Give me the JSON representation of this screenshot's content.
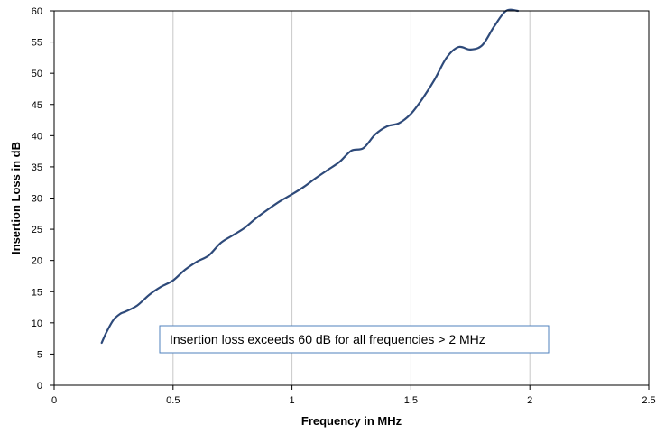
{
  "chart_data": {
    "type": "line",
    "title": "",
    "xlabel": "Frequency in MHz",
    "ylabel": "Insertion Loss in dB",
    "xlim": [
      0,
      2.5
    ],
    "ylim": [
      0,
      60
    ],
    "x_ticks": [
      "0",
      "0.5",
      "1",
      "1.5",
      "2",
      "2.5"
    ],
    "y_ticks": [
      "0",
      "5",
      "10",
      "15",
      "20",
      "25",
      "30",
      "35",
      "40",
      "45",
      "50",
      "55",
      "60"
    ],
    "grid": "vertical",
    "legend": "none",
    "series": [
      {
        "color": "#2e4a7a",
        "x": [
          0.2,
          0.22,
          0.25,
          0.28,
          0.3,
          0.35,
          0.4,
          0.45,
          0.5,
          0.55,
          0.6,
          0.65,
          0.7,
          0.75,
          0.8,
          0.85,
          0.9,
          0.95,
          1.0,
          1.05,
          1.1,
          1.15,
          1.2,
          1.25,
          1.3,
          1.35,
          1.4,
          1.45,
          1.5,
          1.55,
          1.6,
          1.65,
          1.7,
          1.75,
          1.8,
          1.85,
          1.9,
          1.95
        ],
        "y": [
          6.8,
          8.5,
          10.5,
          11.5,
          11.8,
          12.8,
          14.5,
          15.8,
          16.8,
          18.5,
          19.8,
          20.8,
          22.8,
          24.0,
          25.2,
          26.8,
          28.2,
          29.5,
          30.6,
          31.8,
          33.2,
          34.5,
          35.8,
          37.6,
          38.0,
          40.2,
          41.5,
          42.0,
          43.5,
          46.0,
          49.0,
          52.5,
          54.2,
          53.8,
          54.5,
          57.5,
          60.0,
          60.0
        ]
      }
    ],
    "annotation": "Insertion loss exceeds 60 dB for all frequencies > 2 MHz"
  }
}
